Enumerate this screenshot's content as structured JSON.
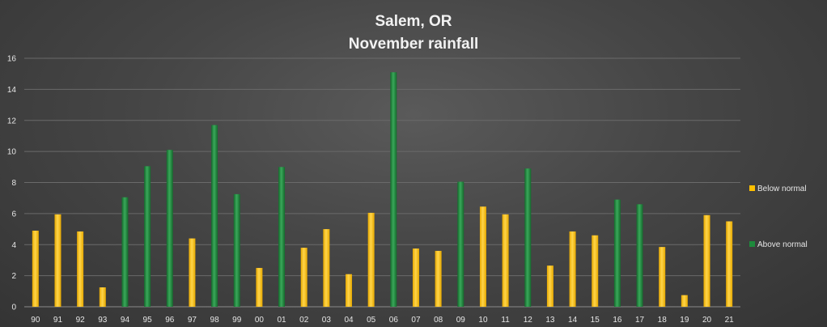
{
  "chart_data": {
    "type": "bar",
    "title": [
      "Salem, OR",
      "November rainfall"
    ],
    "xlabel": "",
    "ylabel": "",
    "ylim": [
      0,
      16
    ],
    "yticks": [
      0,
      2,
      4,
      6,
      8,
      10,
      12,
      14,
      16
    ],
    "grid": true,
    "legend_position": "right",
    "categories": [
      "90",
      "91",
      "92",
      "93",
      "94",
      "95",
      "96",
      "97",
      "98",
      "99",
      "00",
      "01",
      "02",
      "03",
      "04",
      "05",
      "06",
      "07",
      "08",
      "09",
      "10",
      "11",
      "12",
      "13",
      "14",
      "15",
      "16",
      "17",
      "18",
      "19",
      "20",
      "21"
    ],
    "series": [
      {
        "name": "Below normal",
        "color": "#ffc000",
        "values": [
          4.9,
          5.95,
          4.85,
          1.25,
          null,
          null,
          null,
          4.4,
          null,
          null,
          2.5,
          null,
          3.8,
          5.0,
          2.1,
          6.05,
          null,
          3.75,
          3.6,
          null,
          6.45,
          5.95,
          null,
          2.65,
          4.85,
          4.6,
          null,
          null,
          3.85,
          0.75,
          5.9,
          5.5
        ]
      },
      {
        "name": "Above normal",
        "color": "#1e8a3c",
        "values": [
          null,
          null,
          null,
          null,
          7.05,
          9.05,
          10.1,
          null,
          11.7,
          7.25,
          null,
          9.0,
          null,
          null,
          null,
          null,
          15.1,
          null,
          null,
          8.05,
          null,
          null,
          8.9,
          null,
          null,
          null,
          6.9,
          6.6,
          null,
          null,
          null,
          null
        ]
      }
    ]
  }
}
